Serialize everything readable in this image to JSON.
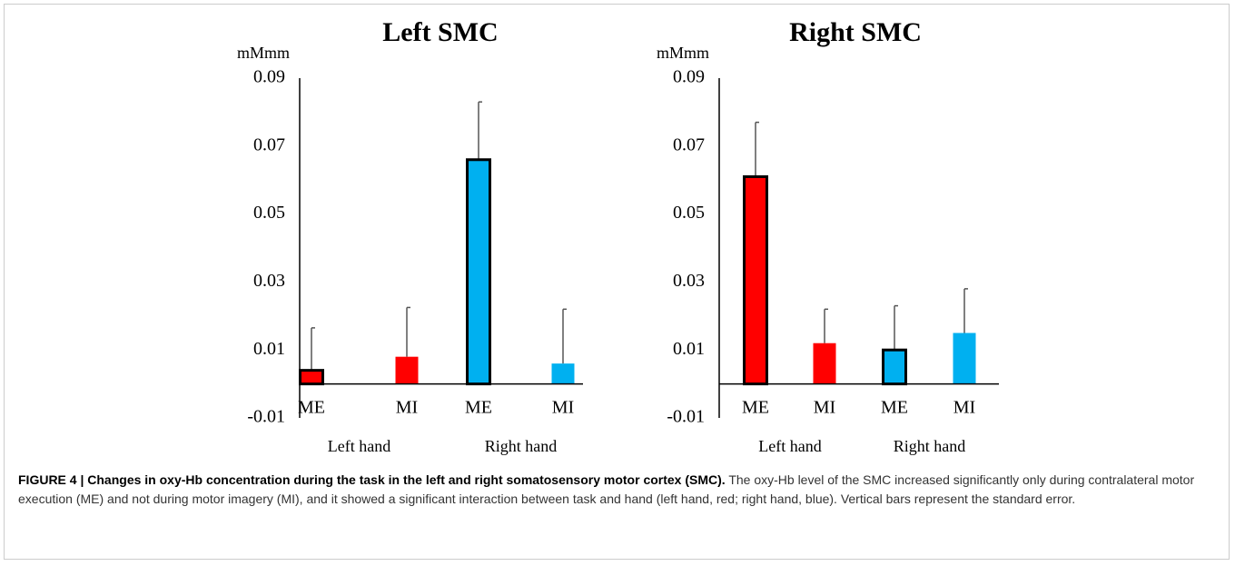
{
  "chart_data": [
    {
      "type": "bar",
      "title": "Left SMC",
      "y_unit": "mMmm",
      "categories": [
        "ME",
        "MI",
        "ME",
        "MI"
      ],
      "groups": [
        "Left hand",
        "Right hand"
      ],
      "values": [
        0.004,
        0.008,
        0.066,
        0.006
      ],
      "errors": [
        0.0125,
        0.0145,
        0.017,
        0.016
      ],
      "colors": [
        "#ff0000",
        "#ff0000",
        "#00b0f0",
        "#00b0f0"
      ],
      "outlined": [
        true,
        false,
        true,
        false
      ],
      "ylim": [
        -0.01,
        0.09
      ],
      "yticks": [
        -0.01,
        0.01,
        0.03,
        0.05,
        0.07,
        0.09
      ],
      "grid": false
    },
    {
      "type": "bar",
      "title": "Right SMC",
      "y_unit": "mMmm",
      "categories": [
        "ME",
        "MI",
        "ME",
        "MI"
      ],
      "groups": [
        "Left hand",
        "Right hand"
      ],
      "values": [
        0.061,
        0.012,
        0.01,
        0.015
      ],
      "errors": [
        0.016,
        0.01,
        0.013,
        0.013
      ],
      "colors": [
        "#ff0000",
        "#ff0000",
        "#00b0f0",
        "#00b0f0"
      ],
      "outlined": [
        true,
        false,
        true,
        false
      ],
      "ylim": [
        -0.01,
        0.09
      ],
      "yticks": [
        -0.01,
        0.01,
        0.03,
        0.05,
        0.07,
        0.09
      ],
      "grid": false
    }
  ],
  "caption": {
    "label": "FIGURE 4 | Changes in oxy-Hb concentration during the task in the left and right somatosensory motor cortex (SMC).",
    "text": "The oxy-Hb level of the SMC increased significantly only during contralateral motor execution (ME) and not during motor imagery (MI), and it showed a significant interaction between task and hand (left hand, red; right hand, blue). Vertical bars represent the standard error."
  }
}
